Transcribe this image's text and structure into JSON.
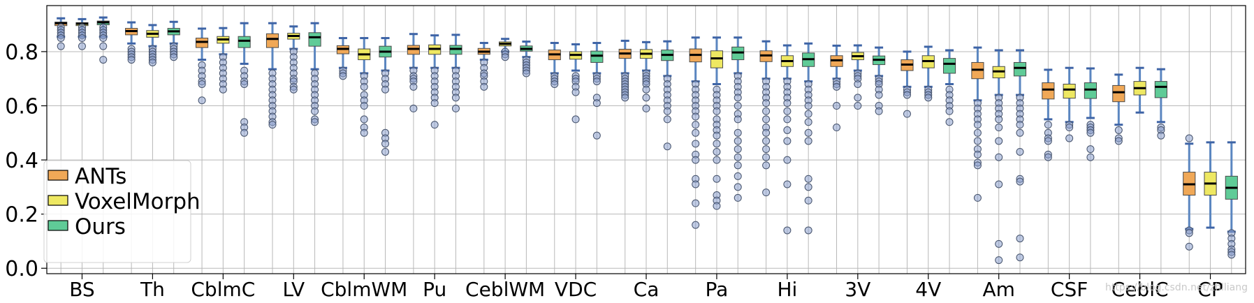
{
  "chart_data": {
    "type": "box",
    "title": "",
    "xlabel": "",
    "ylabel": "",
    "ylim": [
      -0.02,
      0.97
    ],
    "yticks": [
      0.0,
      0.2,
      0.4,
      0.6,
      0.8
    ],
    "ytick_labels": [
      "0.0",
      "0.2",
      "0.4",
      "0.6",
      "0.8"
    ],
    "grid": true,
    "legend_position": "bottom-left",
    "watermark": "https://blog.csdn.net/zhlliang",
    "series": [
      {
        "name": "ANTs",
        "color": "#f0a857"
      },
      {
        "name": "VoxelMorph",
        "color": "#eee862"
      },
      {
        "name": "Ours",
        "color": "#5fcb97"
      }
    ],
    "categories": [
      {
        "label": "BS",
        "boxes": [
          {
            "whislo": 0.855,
            "q1": 0.896,
            "med": 0.905,
            "q3": 0.909,
            "whishi": 0.923,
            "fliers": [
              0.89,
              0.88,
              0.87,
              0.86,
              0.85,
              0.82
            ]
          },
          {
            "whislo": 0.855,
            "q1": 0.896,
            "med": 0.903,
            "q3": 0.907,
            "whishi": 0.92,
            "fliers": [
              0.89,
              0.88,
              0.87,
              0.86,
              0.85,
              0.82
            ]
          },
          {
            "whislo": 0.855,
            "q1": 0.899,
            "med": 0.908,
            "q3": 0.913,
            "whishi": 0.926,
            "fliers": [
              0.89,
              0.88,
              0.87,
              0.86,
              0.85,
              0.82,
              0.77
            ]
          }
        ]
      },
      {
        "label": "Th",
        "boxes": [
          {
            "whislo": 0.83,
            "q1": 0.862,
            "med": 0.876,
            "q3": 0.886,
            "whishi": 0.908,
            "fliers": [
              0.81,
              0.8,
              0.79,
              0.78,
              0.77
            ]
          },
          {
            "whislo": 0.82,
            "q1": 0.853,
            "med": 0.866,
            "q3": 0.878,
            "whishi": 0.898,
            "fliers": [
              0.81,
              0.8,
              0.79,
              0.78,
              0.77,
              0.76
            ]
          },
          {
            "whislo": 0.83,
            "q1": 0.862,
            "med": 0.875,
            "q3": 0.886,
            "whishi": 0.91,
            "fliers": [
              0.82,
              0.81,
              0.8,
              0.79,
              0.78
            ]
          }
        ]
      },
      {
        "label": "CblmC",
        "boxes": [
          {
            "whislo": 0.77,
            "q1": 0.815,
            "med": 0.836,
            "q3": 0.85,
            "whishi": 0.885,
            "fliers": [
              0.75,
              0.73,
              0.71,
              0.69,
              0.68,
              0.62
            ]
          },
          {
            "whislo": 0.79,
            "q1": 0.831,
            "med": 0.845,
            "q3": 0.856,
            "whishi": 0.887,
            "fliers": [
              0.78,
              0.76,
              0.74,
              0.72,
              0.7,
              0.68,
              0.66
            ]
          },
          {
            "whislo": 0.755,
            "q1": 0.815,
            "med": 0.84,
            "q3": 0.856,
            "whishi": 0.905,
            "fliers": [
              0.73,
              0.71,
              0.69,
              0.68,
              0.54,
              0.52,
              0.5
            ]
          }
        ]
      },
      {
        "label": "LV",
        "boxes": [
          {
            "whislo": 0.735,
            "q1": 0.815,
            "med": 0.847,
            "q3": 0.866,
            "whishi": 0.905,
            "fliers": [
              0.72,
              0.7,
              0.68,
              0.66,
              0.64,
              0.62,
              0.6,
              0.58,
              0.56,
              0.54,
              0.53
            ]
          },
          {
            "whislo": 0.81,
            "q1": 0.846,
            "med": 0.858,
            "q3": 0.868,
            "whishi": 0.893,
            "fliers": [
              0.8,
              0.78,
              0.76,
              0.74,
              0.72,
              0.7,
              0.69,
              0.67,
              0.66
            ]
          },
          {
            "whislo": 0.735,
            "q1": 0.82,
            "med": 0.853,
            "q3": 0.87,
            "whishi": 0.905,
            "fliers": [
              0.72,
              0.7,
              0.68,
              0.66,
              0.64,
              0.62,
              0.6,
              0.58,
              0.55,
              0.54
            ]
          }
        ]
      },
      {
        "label": "CblmWM",
        "boxes": [
          {
            "whislo": 0.74,
            "q1": 0.792,
            "med": 0.81,
            "q3": 0.822,
            "whishi": 0.85,
            "fliers": [
              0.73,
              0.72,
              0.71
            ]
          },
          {
            "whislo": 0.72,
            "q1": 0.77,
            "med": 0.79,
            "q3": 0.81,
            "whishi": 0.85,
            "fliers": [
              0.71,
              0.69,
              0.67,
              0.64,
              0.62,
              0.6,
              0.55,
              0.52,
              0.5
            ]
          },
          {
            "whislo": 0.73,
            "q1": 0.78,
            "med": 0.8,
            "q3": 0.82,
            "whishi": 0.85,
            "fliers": [
              0.72,
              0.7,
              0.68,
              0.66,
              0.5,
              0.48,
              0.46,
              0.43
            ]
          }
        ]
      },
      {
        "label": "Pu",
        "boxes": [
          {
            "whislo": 0.74,
            "q1": 0.79,
            "med": 0.81,
            "q3": 0.823,
            "whishi": 0.865,
            "fliers": [
              0.73,
              0.71,
              0.7,
              0.69,
              0.67,
              0.59
            ]
          },
          {
            "whislo": 0.74,
            "q1": 0.79,
            "med": 0.81,
            "q3": 0.825,
            "whishi": 0.86,
            "fliers": [
              0.73,
              0.71,
              0.69,
              0.67,
              0.65,
              0.63,
              0.61,
              0.53
            ]
          },
          {
            "whislo": 0.74,
            "q1": 0.79,
            "med": 0.81,
            "q3": 0.823,
            "whishi": 0.862,
            "fliers": [
              0.73,
              0.71,
              0.69,
              0.67,
              0.65,
              0.63,
              0.59
            ]
          }
        ]
      },
      {
        "label": "CeblWM",
        "boxes": [
          {
            "whislo": 0.77,
            "q1": 0.79,
            "med": 0.8,
            "q3": 0.812,
            "whishi": 0.832,
            "fliers": [
              0.76,
              0.74,
              0.72,
              0.71,
              0.69,
              0.67
            ]
          },
          {
            "whislo": 0.8,
            "q1": 0.821,
            "med": 0.829,
            "q3": 0.836,
            "whishi": 0.847,
            "fliers": [
              0.8,
              0.79,
              0.78
            ]
          },
          {
            "whislo": 0.78,
            "q1": 0.802,
            "med": 0.81,
            "q3": 0.821,
            "whishi": 0.837,
            "fliers": [
              0.77,
              0.76,
              0.75,
              0.74,
              0.73,
              0.72
            ]
          }
        ]
      },
      {
        "label": "VDC",
        "boxes": [
          {
            "whislo": 0.72,
            "q1": 0.77,
            "med": 0.79,
            "q3": 0.806,
            "whishi": 0.832,
            "fliers": [
              0.71,
              0.7,
              0.69,
              0.68
            ]
          },
          {
            "whislo": 0.73,
            "q1": 0.772,
            "med": 0.788,
            "q3": 0.8,
            "whishi": 0.827,
            "fliers": [
              0.71,
              0.7,
              0.69,
              0.67,
              0.65,
              0.55
            ]
          },
          {
            "whislo": 0.72,
            "q1": 0.76,
            "med": 0.785,
            "q3": 0.802,
            "whishi": 0.832,
            "fliers": [
              0.71,
              0.7,
              0.69,
              0.63,
              0.61,
              0.49
            ]
          }
        ]
      },
      {
        "label": "Ca",
        "boxes": [
          {
            "whislo": 0.72,
            "q1": 0.775,
            "med": 0.793,
            "q3": 0.809,
            "whishi": 0.84,
            "fliers": [
              0.71,
              0.7,
              0.69,
              0.68,
              0.67,
              0.66,
              0.65,
              0.64,
              0.63
            ]
          },
          {
            "whislo": 0.73,
            "q1": 0.775,
            "med": 0.792,
            "q3": 0.808,
            "whishi": 0.835,
            "fliers": [
              0.72,
              0.71,
              0.7,
              0.69,
              0.68,
              0.66,
              0.63,
              0.59
            ]
          },
          {
            "whislo": 0.71,
            "q1": 0.767,
            "med": 0.788,
            "q3": 0.806,
            "whishi": 0.838,
            "fliers": [
              0.7,
              0.68,
              0.66,
              0.64,
              0.62,
              0.6,
              0.58,
              0.55,
              0.45
            ]
          }
        ]
      },
      {
        "label": "Pa",
        "boxes": [
          {
            "whislo": 0.69,
            "q1": 0.762,
            "med": 0.788,
            "q3": 0.81,
            "whishi": 0.852,
            "fliers": [
              0.68,
              0.66,
              0.64,
              0.62,
              0.6,
              0.58,
              0.56,
              0.53,
              0.5,
              0.46,
              0.42,
              0.4,
              0.33,
              0.31,
              0.24,
              0.16
            ]
          },
          {
            "whislo": 0.68,
            "q1": 0.74,
            "med": 0.775,
            "q3": 0.803,
            "whishi": 0.852,
            "fliers": [
              0.66,
              0.64,
              0.62,
              0.6,
              0.58,
              0.55,
              0.53,
              0.51,
              0.49,
              0.46,
              0.43,
              0.4,
              0.33,
              0.27,
              0.25,
              0.23
            ]
          },
          {
            "whislo": 0.72,
            "q1": 0.77,
            "med": 0.797,
            "q3": 0.817,
            "whishi": 0.852,
            "fliers": [
              0.71,
              0.69,
              0.67,
              0.65,
              0.63,
              0.6,
              0.57,
              0.55,
              0.5,
              0.47,
              0.44,
              0.41,
              0.38,
              0.34,
              0.3,
              0.26
            ]
          }
        ]
      },
      {
        "label": "Hi",
        "boxes": [
          {
            "whislo": 0.7,
            "q1": 0.763,
            "med": 0.786,
            "q3": 0.803,
            "whishi": 0.838,
            "fliers": [
              0.69,
              0.67,
              0.65,
              0.63,
              0.61,
              0.58,
              0.55,
              0.52,
              0.5,
              0.47,
              0.44,
              0.41,
              0.38,
              0.28
            ]
          },
          {
            "whislo": 0.7,
            "q1": 0.745,
            "med": 0.765,
            "q3": 0.785,
            "whishi": 0.823,
            "fliers": [
              0.69,
              0.67,
              0.65,
              0.63,
              0.61,
              0.58,
              0.55,
              0.51,
              0.47,
              0.4,
              0.31,
              0.14
            ]
          },
          {
            "whislo": 0.69,
            "q1": 0.745,
            "med": 0.772,
            "q3": 0.795,
            "whishi": 0.83,
            "fliers": [
              0.68,
              0.66,
              0.64,
              0.62,
              0.6,
              0.57,
              0.54,
              0.5,
              0.47,
              0.33,
              0.3,
              0.25,
              0.14
            ]
          }
        ]
      },
      {
        "label": "3V",
        "boxes": [
          {
            "whislo": 0.7,
            "q1": 0.745,
            "med": 0.768,
            "q3": 0.785,
            "whishi": 0.822,
            "fliers": [
              0.69,
              0.68,
              0.67,
              0.6,
              0.52
            ]
          },
          {
            "whislo": 0.73,
            "q1": 0.77,
            "med": 0.783,
            "q3": 0.797,
            "whishi": 0.823,
            "fliers": [
              0.72,
              0.71,
              0.7,
              0.68,
              0.63,
              0.6
            ]
          },
          {
            "whislo": 0.71,
            "q1": 0.752,
            "med": 0.77,
            "q3": 0.784,
            "whishi": 0.815,
            "fliers": [
              0.7,
              0.69,
              0.68,
              0.66,
              0.64,
              0.6,
              0.58
            ]
          }
        ]
      },
      {
        "label": "4V",
        "boxes": [
          {
            "whislo": 0.67,
            "q1": 0.73,
            "med": 0.752,
            "q3": 0.77,
            "whishi": 0.8,
            "fliers": [
              0.66,
              0.65,
              0.64,
              0.57
            ]
          },
          {
            "whislo": 0.67,
            "q1": 0.74,
            "med": 0.765,
            "q3": 0.785,
            "whishi": 0.818,
            "fliers": [
              0.66,
              0.65,
              0.64,
              0.63
            ]
          },
          {
            "whislo": 0.68,
            "q1": 0.72,
            "med": 0.755,
            "q3": 0.775,
            "whishi": 0.805,
            "fliers": [
              0.66,
              0.64,
              0.62,
              0.6,
              0.58,
              0.54
            ]
          }
        ]
      },
      {
        "label": "Am",
        "boxes": [
          {
            "whislo": 0.62,
            "q1": 0.7,
            "med": 0.733,
            "q3": 0.76,
            "whishi": 0.815,
            "fliers": [
              0.61,
              0.59,
              0.57,
              0.55,
              0.53,
              0.5,
              0.47,
              0.44,
              0.42,
              0.39,
              0.38,
              0.26
            ]
          },
          {
            "whislo": 0.64,
            "q1": 0.703,
            "med": 0.727,
            "q3": 0.745,
            "whishi": 0.805,
            "fliers": [
              0.63,
              0.61,
              0.59,
              0.57,
              0.55,
              0.52,
              0.47,
              0.41,
              0.31,
              0.09,
              0.03
            ]
          },
          {
            "whislo": 0.64,
            "q1": 0.71,
            "med": 0.74,
            "q3": 0.76,
            "whishi": 0.805,
            "fliers": [
              0.63,
              0.61,
              0.59,
              0.57,
              0.55,
              0.53,
              0.5,
              0.43,
              0.33,
              0.32,
              0.11,
              0.04
            ]
          }
        ]
      },
      {
        "label": "CSF",
        "boxes": [
          {
            "whislo": 0.55,
            "q1": 0.625,
            "med": 0.66,
            "q3": 0.685,
            "whishi": 0.733,
            "fliers": [
              0.53,
              0.5,
              0.48,
              0.47,
              0.42,
              0.41
            ]
          },
          {
            "whislo": 0.54,
            "q1": 0.628,
            "med": 0.66,
            "q3": 0.68,
            "whishi": 0.74,
            "fliers": [
              0.53,
              0.52,
              0.48
            ]
          },
          {
            "whislo": 0.555,
            "q1": 0.627,
            "med": 0.66,
            "q3": 0.685,
            "whishi": 0.738,
            "fliers": [
              0.53,
              0.52,
              0.51,
              0.5,
              0.44,
              0.41
            ]
          }
        ]
      },
      {
        "label": "CeblC",
        "boxes": [
          {
            "whislo": 0.53,
            "q1": 0.615,
            "med": 0.65,
            "q3": 0.675,
            "whishi": 0.715,
            "fliers": [
              0.51,
              0.48,
              0.47
            ]
          },
          {
            "whislo": 0.575,
            "q1": 0.64,
            "med": 0.665,
            "q3": 0.69,
            "whishi": 0.74,
            "fliers": []
          },
          {
            "whislo": 0.54,
            "q1": 0.63,
            "med": 0.67,
            "q3": 0.69,
            "whishi": 0.735,
            "fliers": [
              0.52,
              0.51,
              0.49
            ]
          }
        ]
      },
      {
        "label": "CP",
        "boxes": [
          {
            "whislo": 0.145,
            "q1": 0.27,
            "med": 0.31,
            "q3": 0.355,
            "whishi": 0.46,
            "fliers": [
              0.48,
              0.14,
              0.13,
              0.08
            ]
          },
          {
            "whislo": 0.15,
            "q1": 0.27,
            "med": 0.313,
            "q3": 0.355,
            "whishi": 0.465,
            "fliers": []
          },
          {
            "whislo": 0.135,
            "q1": 0.255,
            "med": 0.297,
            "q3": 0.34,
            "whishi": 0.465,
            "fliers": [
              0.13,
              0.11,
              0.09,
              0.07,
              0.06,
              0.05
            ]
          }
        ]
      }
    ]
  }
}
